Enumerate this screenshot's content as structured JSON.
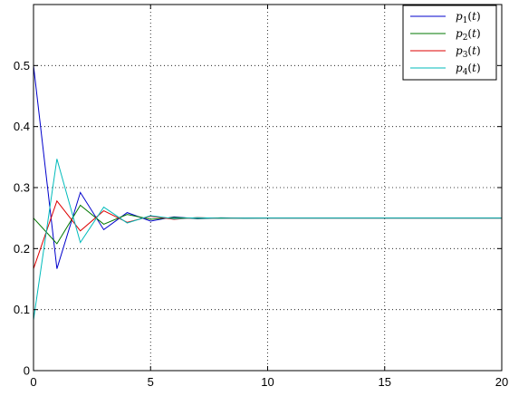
{
  "chart_data": {
    "type": "line",
    "title": "",
    "xlabel": "",
    "ylabel": "",
    "xlim": [
      0,
      20
    ],
    "ylim": [
      0,
      0.6
    ],
    "x_ticks": [
      0,
      5,
      10,
      15,
      20
    ],
    "x_tick_labels": [
      "0",
      "5",
      "10",
      "15",
      "20"
    ],
    "y_ticks": [
      0,
      0.1,
      0.2,
      0.3,
      0.4,
      0.5
    ],
    "y_tick_labels": [
      "0",
      "0.1",
      "0.2",
      "0.3",
      "0.4",
      "0.5"
    ],
    "grid": true,
    "legend_position": "top-right",
    "x": [
      0,
      1,
      2,
      3,
      4,
      5,
      6,
      7,
      8,
      9,
      10,
      11,
      12,
      13,
      14,
      15,
      16,
      17,
      18,
      19,
      20
    ],
    "series": [
      {
        "name": "p1(t)",
        "color": "#0000cc",
        "values": [
          0.5,
          0.167,
          0.292,
          0.231,
          0.259,
          0.245,
          0.252,
          0.249,
          0.2505,
          0.2498,
          0.25,
          0.25,
          0.25,
          0.25,
          0.25,
          0.25,
          0.25,
          0.25,
          0.25,
          0.25,
          0.25
        ]
      },
      {
        "name": "p2(t)",
        "color": "#007700",
        "values": [
          0.25,
          0.208,
          0.271,
          0.24,
          0.256,
          0.248,
          0.251,
          0.2495,
          0.2502,
          0.2499,
          0.25,
          0.25,
          0.25,
          0.25,
          0.25,
          0.25,
          0.25,
          0.25,
          0.25,
          0.25,
          0.25
        ]
      },
      {
        "name": "p3(t)",
        "color": "#dd0000",
        "values": [
          0.167,
          0.278,
          0.229,
          0.262,
          0.243,
          0.253,
          0.248,
          0.2508,
          0.2496,
          0.2502,
          0.25,
          0.25,
          0.25,
          0.25,
          0.25,
          0.25,
          0.25,
          0.25,
          0.25,
          0.25,
          0.25
        ]
      },
      {
        "name": "p4(t)",
        "color": "#00bbbb",
        "values": [
          0.083,
          0.347,
          0.21,
          0.268,
          0.242,
          0.254,
          0.249,
          0.2506,
          0.2497,
          0.2501,
          0.25,
          0.25,
          0.25,
          0.25,
          0.25,
          0.25,
          0.25,
          0.25,
          0.25,
          0.25,
          0.25
        ]
      }
    ]
  },
  "legend": {
    "entries": [
      {
        "base": "p",
        "sub": "1",
        "arg": "(t)"
      },
      {
        "base": "p",
        "sub": "2",
        "arg": "(t)"
      },
      {
        "base": "p",
        "sub": "3",
        "arg": "(t)"
      },
      {
        "base": "p",
        "sub": "4",
        "arg": "(t)"
      }
    ]
  }
}
